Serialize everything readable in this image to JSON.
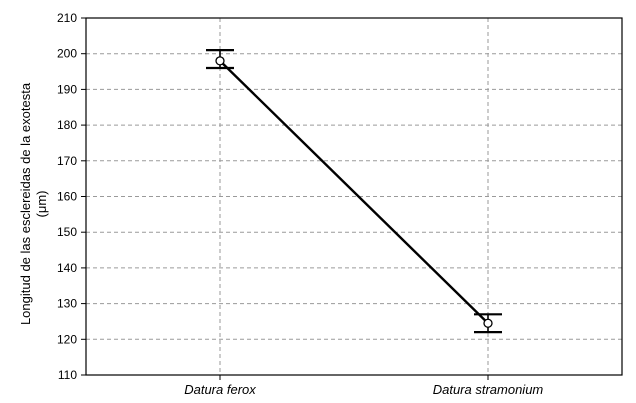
{
  "chart_data": {
    "type": "line",
    "categories": [
      "Datura ferox",
      "Datura stramonium"
    ],
    "series": [
      {
        "values": [
          198,
          124.5
        ],
        "error_low": [
          196,
          122
        ],
        "error_high": [
          201,
          127
        ]
      }
    ],
    "title": "",
    "xlabel": "",
    "ylabel_lines": [
      "Longitud de las esclereidas de la exotesta",
      "(μm)"
    ],
    "ylim": [
      110,
      210
    ],
    "yticks": [
      110,
      120,
      130,
      140,
      150,
      160,
      170,
      180,
      190,
      200,
      210
    ],
    "grid": true,
    "legend": "none",
    "colors": {
      "line": "#000000",
      "grid": "#9a9a9a",
      "frame": "#000000",
      "marker_fill": "#ffffff"
    }
  }
}
